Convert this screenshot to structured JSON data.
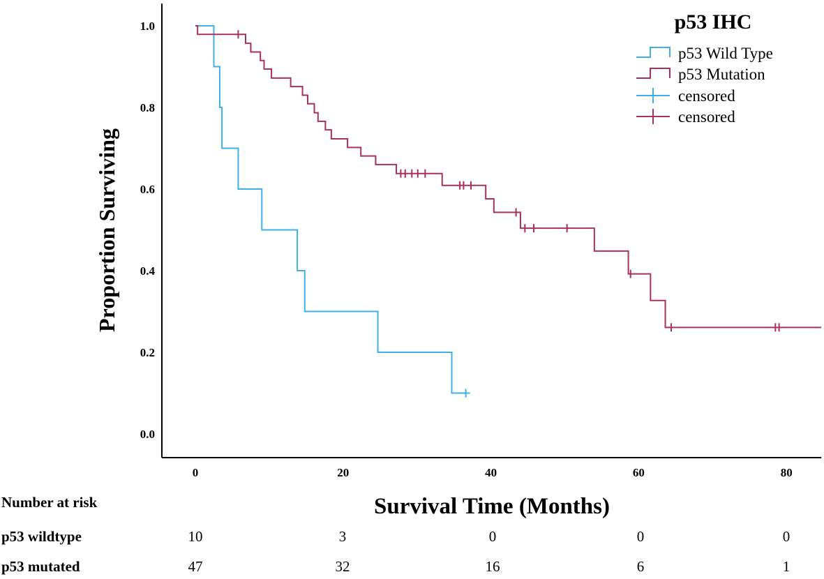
{
  "chart_data": {
    "type": "line",
    "subtype": "kaplan-meier",
    "title": "",
    "xlabel": "Survival Time (Months)",
    "ylabel": "Proportion Surviving",
    "xlim": [
      -5,
      85
    ],
    "ylim": [
      -0.05,
      1.05
    ],
    "xticks": [
      0,
      20,
      40,
      60,
      80
    ],
    "yticks": [
      0.0,
      0.2,
      0.4,
      0.6,
      0.8,
      1.0
    ],
    "xtick_labels": [
      "0",
      "20",
      "40",
      "60",
      "80"
    ],
    "ytick_labels": [
      "0.0",
      "0.2",
      "0.4",
      "0.6",
      "0.8",
      "1.0"
    ],
    "legend": {
      "title": "p53 IHC",
      "position": "top-right",
      "entries": [
        {
          "label": "p53 Wild Type",
          "kind": "step",
          "color": "#3fb0e6"
        },
        {
          "label": "p53 Mutation",
          "kind": "step",
          "color": "#a8305c"
        },
        {
          "label": "censored",
          "kind": "cross",
          "color": "#3fb0e6"
        },
        {
          "label": "censored",
          "kind": "cross",
          "color": "#a8305c"
        }
      ]
    },
    "series": [
      {
        "name": "p53 Wild Type",
        "color": "#3fb0e6",
        "steps": [
          [
            0,
            1.0
          ],
          [
            2.5,
            0.9
          ],
          [
            3.3,
            0.8
          ],
          [
            3.6,
            0.7
          ],
          [
            5.8,
            0.6
          ],
          [
            9,
            0.5
          ],
          [
            13.8,
            0.4
          ],
          [
            14.8,
            0.3
          ],
          [
            24.7,
            0.2
          ],
          [
            34.7,
            0.1
          ]
        ],
        "end_x": 36.6,
        "censored": [
          [
            36.6,
            0.1
          ]
        ]
      },
      {
        "name": "p53 Mutation",
        "color": "#a8305c",
        "steps": [
          [
            0,
            1.0
          ],
          [
            0.3,
            0.979
          ],
          [
            6.8,
            0.957
          ],
          [
            7.5,
            0.936
          ],
          [
            8.8,
            0.915
          ],
          [
            9.3,
            0.894
          ],
          [
            10.3,
            0.872
          ],
          [
            12.9,
            0.851
          ],
          [
            14.5,
            0.83
          ],
          [
            15.2,
            0.809
          ],
          [
            16.1,
            0.787
          ],
          [
            16.6,
            0.766
          ],
          [
            17.6,
            0.745
          ],
          [
            18.4,
            0.723
          ],
          [
            20.6,
            0.702
          ],
          [
            22.4,
            0.681
          ],
          [
            24.4,
            0.66
          ],
          [
            27.2,
            0.638
          ],
          [
            33.4,
            0.609
          ],
          [
            39.3,
            0.576
          ],
          [
            40.4,
            0.543
          ],
          [
            44,
            0.504
          ],
          [
            54,
            0.448
          ],
          [
            58.6,
            0.392
          ],
          [
            61.6,
            0.327
          ],
          [
            63.6,
            0.261
          ]
        ],
        "end_x": 85,
        "censored": [
          [
            5.8,
            0.979
          ],
          [
            27.8,
            0.638
          ],
          [
            28.4,
            0.638
          ],
          [
            29.3,
            0.638
          ],
          [
            30.1,
            0.638
          ],
          [
            31.1,
            0.638
          ],
          [
            35.8,
            0.609
          ],
          [
            36.3,
            0.609
          ],
          [
            37.3,
            0.609
          ],
          [
            43.4,
            0.543
          ],
          [
            44.6,
            0.504
          ],
          [
            45.8,
            0.504
          ],
          [
            50.3,
            0.504
          ],
          [
            58.9,
            0.392
          ],
          [
            64.4,
            0.261
          ],
          [
            78.5,
            0.261
          ],
          [
            79,
            0.261
          ]
        ]
      }
    ]
  },
  "risk_table": {
    "title": "Number at risk",
    "rows": [
      {
        "label": "p53 wildtype",
        "values": [
          "10",
          "3",
          "0",
          "0",
          "0"
        ]
      },
      {
        "label": "p53 mutated",
        "values": [
          "47",
          "32",
          "16",
          "6",
          "1"
        ]
      }
    ]
  }
}
